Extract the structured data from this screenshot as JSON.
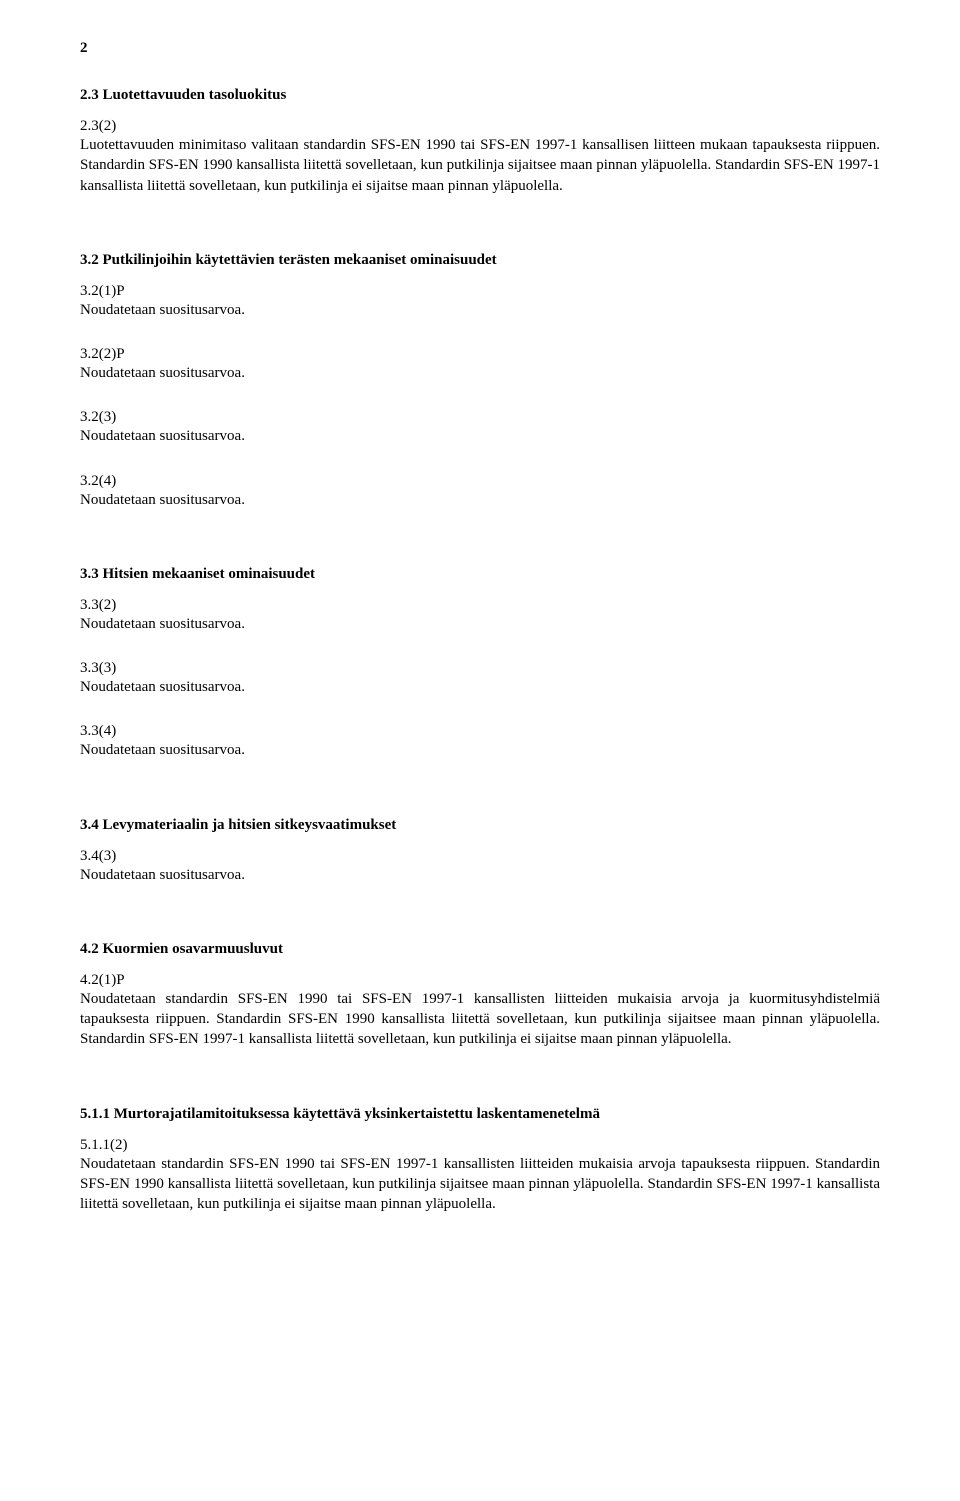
{
  "pageNumber": "2",
  "sections": {
    "s23": {
      "heading": "2.3    Luotettavuuden tasoluokitus",
      "clause": "2.3(2)",
      "body": "Luotettavuuden minimitaso valitaan standardin SFS-EN 1990 tai SFS-EN 1997-1 kansallisen liitteen mukaan tapauksesta riippuen. Standardin SFS-EN 1990 kansallista liitettä sovelletaan, kun putkilinja sijaitsee maan pinnan yläpuolella. Standardin SFS-EN 1997-1 kansallista liitettä sovelletaan, kun putkilinja ei sijaitse maan pinnan yläpuolella."
    },
    "s32": {
      "heading": "3.2    Putkilinjoihin käytettävien terästen mekaaniset ominaisuudet",
      "c1": {
        "label": "3.2(1)P",
        "text": "Noudatetaan suositusarvoa."
      },
      "c2": {
        "label": "3.2(2)P",
        "text": "Noudatetaan suositusarvoa."
      },
      "c3": {
        "label": "3.2(3)",
        "text": "Noudatetaan suositusarvoa."
      },
      "c4": {
        "label": "3.2(4)",
        "text": "Noudatetaan suositusarvoa."
      }
    },
    "s33": {
      "heading": "3.3    Hitsien mekaaniset ominaisuudet",
      "c1": {
        "label": "3.3(2)",
        "text": "Noudatetaan suositusarvoa."
      },
      "c2": {
        "label": "3.3(3)",
        "text": "Noudatetaan suositusarvoa."
      },
      "c3": {
        "label": "3.3(4)",
        "text": "Noudatetaan suositusarvoa."
      }
    },
    "s34": {
      "heading": "3.4    Levymateriaalin ja hitsien sitkeysvaatimukset",
      "c1": {
        "label": "3.4(3)",
        "text": "Noudatetaan suositusarvoa."
      }
    },
    "s42": {
      "heading": "4.2    Kuormien osavarmuusluvut",
      "clause": "4.2(1)P",
      "body": "Noudatetaan standardin SFS-EN 1990 tai SFS-EN 1997-1 kansallisten liitteiden mukaisia arvoja ja kuormitusyhdistelmiä tapauksesta riippuen. Standardin SFS-EN 1990 kansallista liitettä sovelletaan, kun putkilinja sijaitsee maan pinnan yläpuolella. Standardin SFS-EN 1997-1 kansallista liitettä sovelletaan, kun putkilinja ei sijaitse maan pinnan yläpuolella."
    },
    "s511": {
      "heading": "5.1.1 Murtorajatilamitoituksessa käytettävä yksinkertaistettu laskentamenetelmä",
      "clause": "5.1.1(2)",
      "body": "Noudatetaan standardin SFS-EN 1990 tai SFS-EN 1997-1 kansallisten liitteiden mukaisia arvoja tapauksesta riippuen. Standardin SFS-EN 1990 kansallista liitettä sovelletaan, kun putkilinja sijaitsee maan pinnan yläpuolella. Standardin SFS-EN 1997-1 kansallista liitettä sovelletaan, kun putkilinja ei sijaitse maan pinnan yläpuolella."
    }
  }
}
